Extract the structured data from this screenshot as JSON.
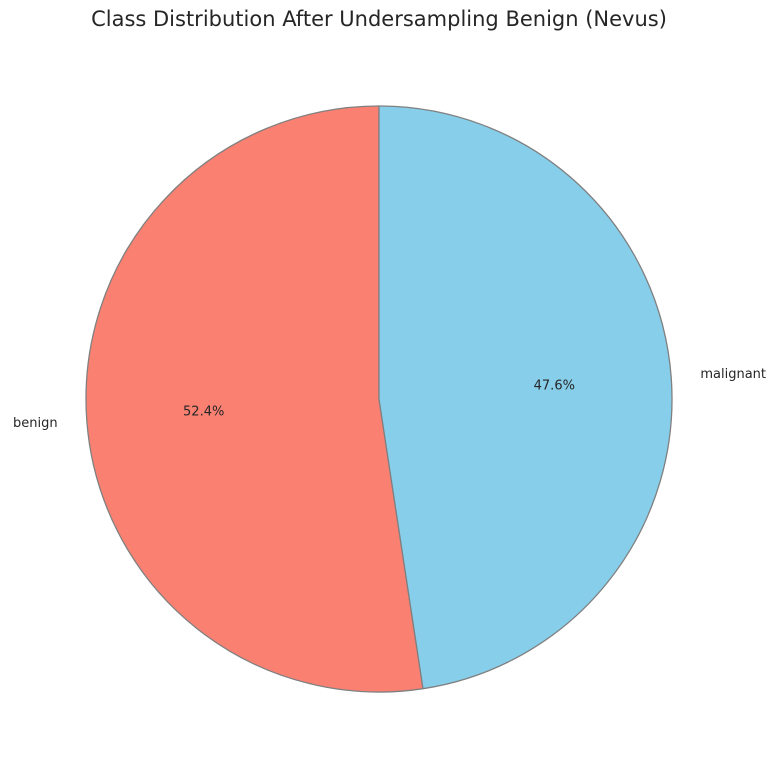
{
  "chart_data": {
    "type": "pie",
    "title": "Class Distribution After Undersampling Benign (Nevus)",
    "categories": [
      "benign",
      "malignant"
    ],
    "values": [
      52.4,
      47.6
    ],
    "percent_labels": [
      "52.4%",
      "47.6%"
    ],
    "colors": [
      "#fa8072",
      "#87ceeb"
    ],
    "edge_color": "#808080",
    "start_angle_deg": 90,
    "direction": "counterclockwise",
    "legend": "none"
  }
}
